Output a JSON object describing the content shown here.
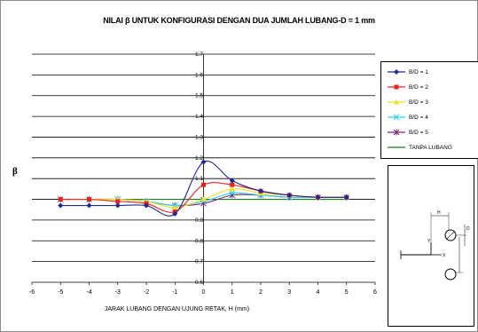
{
  "chart_data": {
    "type": "line",
    "title": "NILAI  β UNTUK KONFIGURASI DENGAN DUA JUMLAH LUBANG-D = 1 mm",
    "xlabel": "JARAK LUBANG DENGAN UJUNG RETAK, H (mm)",
    "ylabel": "β",
    "xlim": [
      -6,
      6
    ],
    "ylim": [
      0.6,
      1.7
    ],
    "xticks": [
      "-6",
      "-5",
      "-4",
      "-3",
      "-2",
      "-1",
      "0",
      "1",
      "2",
      "3",
      "4",
      "5",
      "6"
    ],
    "yticks": [
      "0.6",
      "0.7",
      "0.8",
      "0.9",
      "1",
      "1.1",
      "1.2",
      "1.3",
      "1.4",
      "1.5",
      "1.6",
      "1.7"
    ],
    "grid": true,
    "legend_position": "right",
    "x": [
      -5,
      -4,
      -3,
      -2,
      -1,
      0,
      1,
      2,
      3,
      4,
      5
    ],
    "series": [
      {
        "name": "B/D = 1",
        "color": "#1f2a8a",
        "marker": "diamond",
        "values": [
          0.97,
          0.97,
          0.97,
          0.97,
          0.93,
          1.18,
          1.09,
          1.04,
          1.02,
          1.01,
          1.01
        ]
      },
      {
        "name": "B/D = 2",
        "color": "#e8231f",
        "marker": "square",
        "values": [
          1.0,
          1.0,
          0.99,
          0.98,
          0.94,
          1.07,
          1.07,
          1.04,
          1.02,
          1.01,
          1.01
        ]
      },
      {
        "name": "B/D = 3",
        "color": "#f0e020",
        "marker": "triangle",
        "values": [
          1.0,
          1.0,
          1.0,
          0.99,
          0.96,
          1.0,
          1.05,
          1.03,
          1.02,
          1.01,
          1.01
        ]
      },
      {
        "name": "B/D = 4",
        "color": "#30d0e8",
        "marker": "x",
        "values": [
          1.0,
          1.0,
          1.0,
          0.99,
          0.97,
          0.99,
          1.03,
          1.02,
          1.01,
          1.01,
          1.01
        ]
      },
      {
        "name": "B/D = 5",
        "color": "#7a2a7a",
        "marker": "star",
        "values": [
          1.0,
          1.0,
          1.0,
          0.99,
          0.97,
          0.98,
          1.02,
          1.02,
          1.01,
          1.01,
          1.01
        ]
      },
      {
        "name": "TANPA LUBANG",
        "color": "#1e7a1e",
        "marker": "none",
        "values": [
          1.0,
          1.0,
          1.0,
          1.0,
          1.0,
          1.0,
          1.0,
          1.0,
          1.0,
          1.0,
          1.0
        ]
      }
    ]
  },
  "inset": {
    "labels": [
      "H",
      "D",
      "Y",
      "X"
    ]
  }
}
